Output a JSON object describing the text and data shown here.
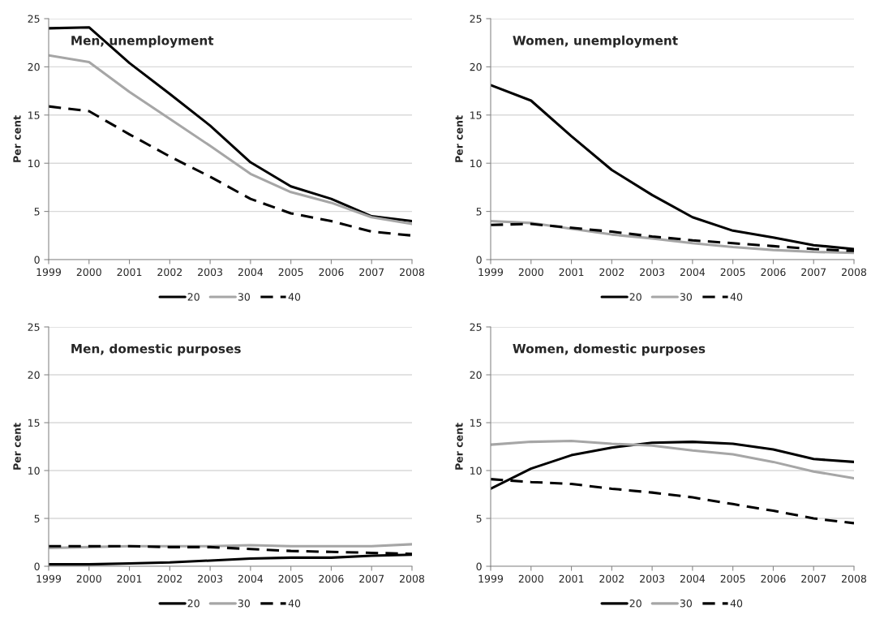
{
  "chart_data": [
    {
      "type": "line",
      "title": "Men, unemployment",
      "ylabel": "Per cent",
      "categories": [
        "1999",
        "2000",
        "2001",
        "2002",
        "2003",
        "2004",
        "2005",
        "2006",
        "2007",
        "2008"
      ],
      "ylim": [
        0,
        25
      ],
      "yticks": [
        0,
        5,
        10,
        15,
        20,
        25
      ],
      "grid": "y",
      "legend": "bottom",
      "series": [
        {
          "name": "20",
          "color": "#000000",
          "line_style": "solid",
          "values": [
            24.0,
            24.1,
            20.4,
            17.2,
            13.9,
            10.1,
            7.6,
            6.3,
            4.5,
            4.0
          ]
        },
        {
          "name": "30",
          "color": "#a6a6a6",
          "line_style": "solid",
          "values": [
            21.2,
            20.5,
            17.4,
            14.6,
            11.8,
            8.9,
            7.0,
            5.9,
            4.4,
            3.7
          ]
        },
        {
          "name": "40",
          "color": "#000000",
          "line_style": "dashed",
          "values": [
            15.9,
            15.4,
            13.0,
            10.7,
            8.6,
            6.3,
            4.8,
            4.0,
            2.9,
            2.5
          ]
        }
      ]
    },
    {
      "type": "line",
      "title": "Women, unemployment",
      "ylabel": "Per cent",
      "categories": [
        "1999",
        "2000",
        "2001",
        "2002",
        "2003",
        "2004",
        "2005",
        "2006",
        "2007",
        "2008"
      ],
      "ylim": [
        0,
        25
      ],
      "yticks": [
        0,
        5,
        10,
        15,
        20,
        25
      ],
      "grid": "y",
      "legend": "bottom",
      "series": [
        {
          "name": "20",
          "color": "#000000",
          "line_style": "solid",
          "values": [
            18.1,
            16.5,
            12.8,
            9.3,
            6.7,
            4.4,
            3.0,
            2.3,
            1.5,
            1.1
          ]
        },
        {
          "name": "30",
          "color": "#a6a6a6",
          "line_style": "solid",
          "values": [
            4.0,
            3.8,
            3.2,
            2.6,
            2.2,
            1.7,
            1.3,
            1.0,
            0.8,
            0.7
          ]
        },
        {
          "name": "40",
          "color": "#000000",
          "line_style": "dashed",
          "values": [
            3.6,
            3.7,
            3.3,
            2.9,
            2.4,
            2.0,
            1.7,
            1.4,
            1.1,
            0.9
          ]
        }
      ]
    },
    {
      "type": "line",
      "title": "Men, domestic purposes",
      "ylabel": "Per cent",
      "categories": [
        "1999",
        "2000",
        "2001",
        "2002",
        "2003",
        "2004",
        "2005",
        "2006",
        "2007",
        "2008"
      ],
      "ylim": [
        0,
        25
      ],
      "yticks": [
        0,
        5,
        10,
        15,
        20,
        25
      ],
      "grid": "y",
      "legend": "bottom",
      "series": [
        {
          "name": "20",
          "color": "#000000",
          "line_style": "solid",
          "values": [
            0.2,
            0.2,
            0.3,
            0.4,
            0.6,
            0.8,
            0.9,
            0.9,
            1.1,
            1.2
          ]
        },
        {
          "name": "30",
          "color": "#a6a6a6",
          "line_style": "solid",
          "values": [
            1.9,
            2.0,
            2.1,
            2.1,
            2.1,
            2.2,
            2.1,
            2.1,
            2.1,
            2.3
          ]
        },
        {
          "name": "40",
          "color": "#000000",
          "line_style": "dashed",
          "values": [
            2.1,
            2.1,
            2.1,
            2.0,
            2.0,
            1.8,
            1.6,
            1.5,
            1.4,
            1.3
          ]
        }
      ]
    },
    {
      "type": "line",
      "title": "Women, domestic purposes",
      "ylabel": "Per cent",
      "categories": [
        "1999",
        "2000",
        "2001",
        "2002",
        "2003",
        "2004",
        "2005",
        "2006",
        "2007",
        "2008"
      ],
      "ylim": [
        0,
        25
      ],
      "yticks": [
        0,
        5,
        10,
        15,
        20,
        25
      ],
      "grid": "y",
      "legend": "bottom",
      "series": [
        {
          "name": "20",
          "color": "#000000",
          "line_style": "solid",
          "values": [
            8.1,
            10.2,
            11.6,
            12.4,
            12.9,
            13.0,
            12.8,
            12.2,
            11.2,
            10.9
          ]
        },
        {
          "name": "30",
          "color": "#a6a6a6",
          "line_style": "solid",
          "values": [
            12.7,
            13.0,
            13.1,
            12.8,
            12.6,
            12.1,
            11.7,
            10.9,
            9.9,
            9.2
          ]
        },
        {
          "name": "40",
          "color": "#000000",
          "line_style": "dashed",
          "values": [
            9.1,
            8.8,
            8.6,
            8.1,
            7.7,
            7.2,
            6.5,
            5.8,
            5.0,
            4.5
          ]
        }
      ]
    }
  ]
}
